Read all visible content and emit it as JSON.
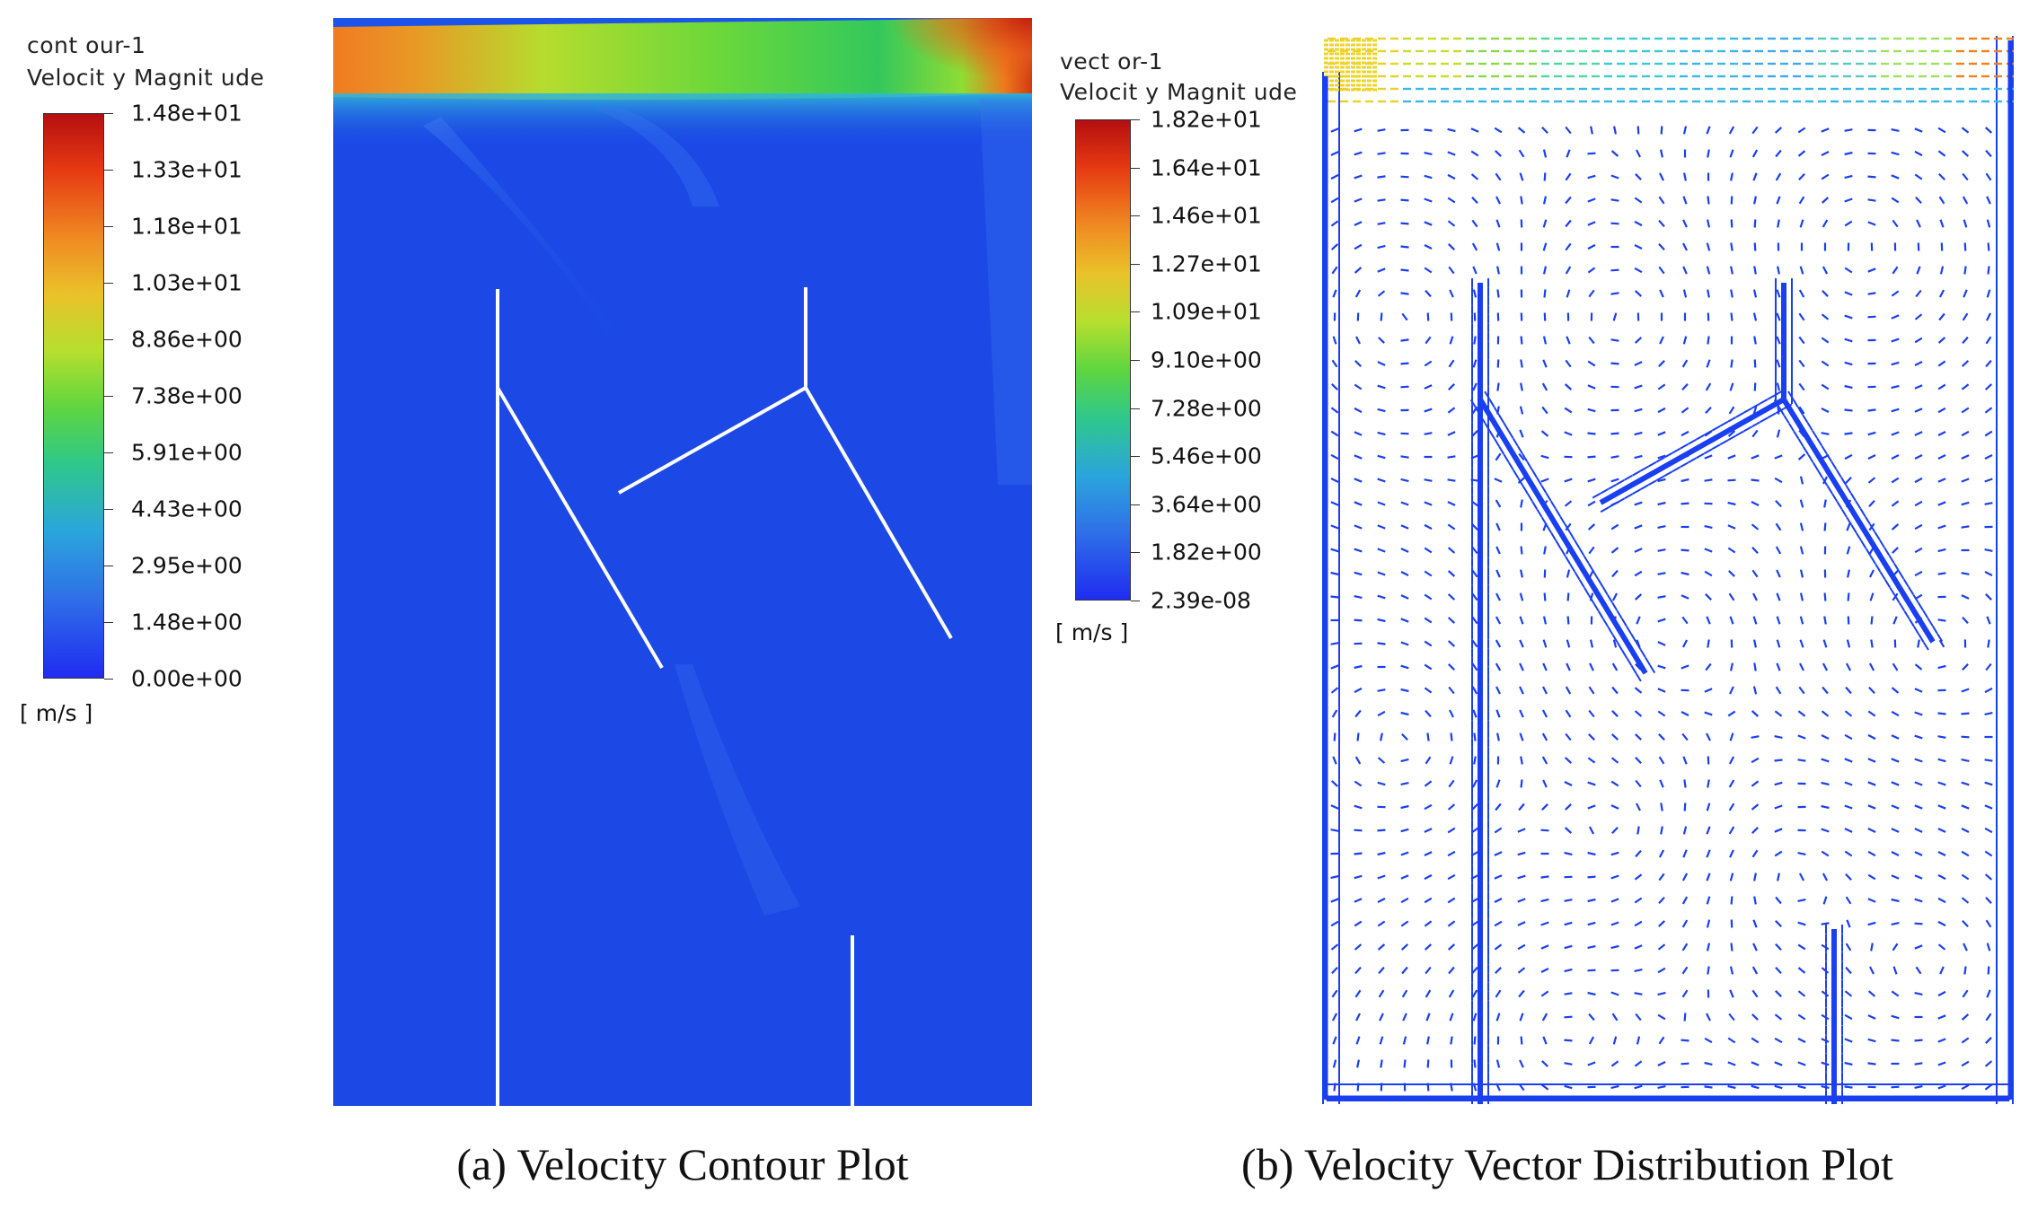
{
  "panel_a": {
    "legend_title_1": "cont our-1",
    "legend_title_2": "Velocit y Magnit ude",
    "ticks": [
      "1.48e+01",
      "1.33e+01",
      "1.18e+01",
      "1.03e+01",
      "8.86e+00",
      "7.38e+00",
      "5.91e+00",
      "4.43e+00",
      "2.95e+00",
      "1.48e+00",
      "0.00e+00"
    ],
    "unit": "[ m/s ]",
    "caption": "(a) Velocity Contour Plot"
  },
  "panel_b": {
    "legend_title_1": "vect or-1",
    "legend_title_2": "Velocit y Magnit ude",
    "ticks": [
      "1.82e+01",
      "1.64e+01",
      "1.46e+01",
      "1.27e+01",
      "1.09e+01",
      "9.10e+00",
      "7.28e+00",
      "5.46e+00",
      "3.64e+00",
      "1.82e+00",
      "2.39e-08"
    ],
    "unit": "[ m/s ]",
    "caption": "(b) Velocity Vector Distribution Plot"
  },
  "colors": {
    "field_blue": "#1c49e6",
    "vector_blue": "#1a3ff0",
    "baffle": "#ffffff"
  }
}
